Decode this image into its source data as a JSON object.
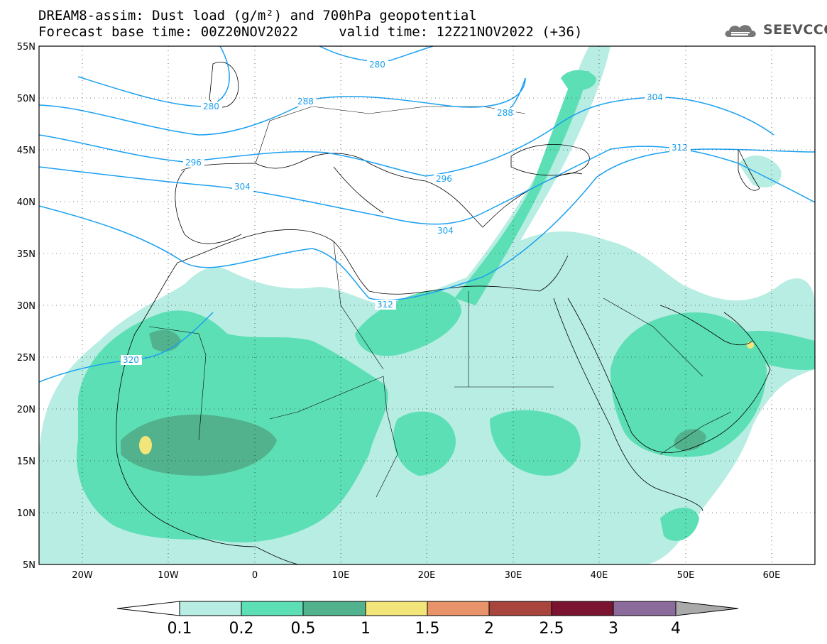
{
  "title": {
    "line1": "DREAM8-assim: Dust load (g/m²) and 700hPa geopotential",
    "line2": "Forecast base time: 00Z20NOV2022     valid time: 12Z21NOV2022 (+36)"
  },
  "logo": {
    "text": "SEEVCCC"
  },
  "axes": {
    "lat_labels": [
      "55N",
      "50N",
      "45N",
      "40N",
      "35N",
      "30N",
      "25N",
      "20N",
      "15N",
      "10N",
      "5N"
    ],
    "lon_labels": [
      "20W",
      "10W",
      "0",
      "10E",
      "20E",
      "30E",
      "40E",
      "50E",
      "60E"
    ],
    "lat_range": [
      5,
      55
    ],
    "lon_range": [
      -25,
      65
    ]
  },
  "contours": {
    "labels": [
      "280",
      "280",
      "288",
      "288",
      "296",
      "296",
      "304",
      "304",
      "304",
      "312",
      "312",
      "320"
    ]
  },
  "colorbar": {
    "tick_labels": [
      "0.1",
      "0.2",
      "0.5",
      "1",
      "1.5",
      "2",
      "2.5",
      "3",
      "4"
    ],
    "colors": [
      "#ffffff",
      "#b7ede2",
      "#5ddfb5",
      "#52b28d",
      "#f2e67a",
      "#e89369",
      "#a8463e",
      "#7a1430",
      "#8b6a9c",
      "#aaaaaa"
    ]
  },
  "colors": {
    "contour": "#1aa0f0",
    "dust_low": "#b7ede2",
    "dust_mid": "#5ddfb5",
    "dust_high": "#52b28d",
    "dust_peak": "#f2e67a"
  }
}
